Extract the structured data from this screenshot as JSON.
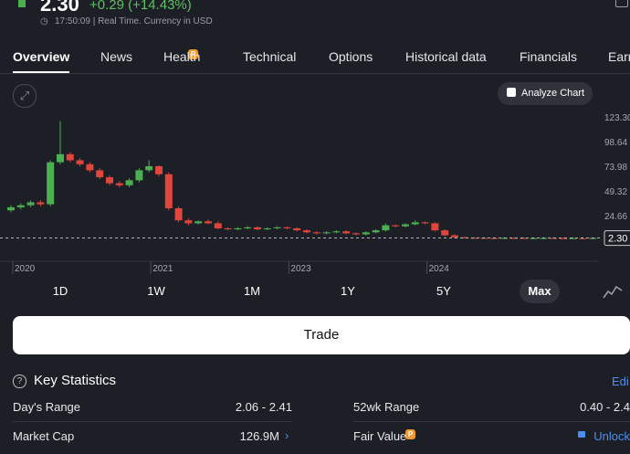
{
  "header": {
    "price": "2.30",
    "change": "+0.29 (+14.43%)",
    "status": "17:50:09 | Real Time. Currency in USD"
  },
  "tabs": [
    "Overview",
    "News",
    "Health",
    "Technical",
    "Options",
    "Historical data",
    "Financials",
    "Earn"
  ],
  "analyze_button": "Analyze Chart",
  "chart_data": {
    "type": "candlestick",
    "grid": false,
    "ylim": [
      -20,
      132.4
    ],
    "yticks": [
      {
        "value": 123.3,
        "label": "123.30"
      },
      98.64,
      73.98,
      49.32,
      24.66
    ],
    "xticks": [
      {
        "value": 0,
        "label": "2020"
      },
      {
        "value": 14,
        "label": "2021"
      },
      {
        "value": 28,
        "label": "2023"
      },
      {
        "value": 42,
        "label": "2024"
      }
    ],
    "last_price": {
      "value": 2.3,
      "label": "2.30"
    },
    "up_color": "#4cb050",
    "down_color": "#e0463b",
    "open": [
      30,
      33,
      35,
      38,
      36,
      78,
      86,
      80,
      76,
      70,
      63,
      57,
      55,
      60,
      70,
      74,
      66,
      32,
      20,
      17,
      19,
      17,
      12,
      11,
      12,
      13,
      11,
      12,
      13,
      12,
      10,
      8,
      7,
      8,
      9,
      7,
      6,
      8,
      10,
      15,
      14,
      16,
      18,
      17,
      10,
      5,
      3,
      2.5,
      2.4,
      2.3,
      2.2,
      2.4,
      2.3,
      2.1,
      2.2,
      2.3,
      2.1,
      2.0,
      2.1,
      2.0
    ],
    "high": [
      35,
      37,
      40,
      40,
      80,
      119,
      88,
      82,
      78,
      72,
      65,
      59,
      62,
      72,
      80,
      75,
      68,
      34,
      22,
      20,
      21,
      19,
      13,
      13,
      14,
      14,
      13,
      14,
      14,
      13,
      11,
      9,
      9,
      10,
      10,
      8,
      9,
      11,
      17,
      16,
      17,
      20,
      19,
      18,
      11,
      6,
      4,
      3,
      3,
      3,
      3,
      3,
      3,
      3,
      3,
      3,
      3,
      3,
      3,
      2.6
    ],
    "low": [
      28,
      31,
      33,
      34,
      34,
      76,
      78,
      74,
      68,
      61,
      55,
      53,
      53,
      58,
      68,
      64,
      30,
      18,
      15,
      16,
      16,
      11,
      10,
      10,
      11,
      10,
      10,
      11,
      11,
      9,
      7,
      6,
      6,
      7,
      6,
      5,
      5,
      7,
      9,
      13,
      13,
      15,
      16,
      9,
      4,
      2.5,
      2,
      2,
      2,
      1.9,
      1.9,
      2,
      1.8,
      1.8,
      2,
      1.9,
      1.8,
      1.8,
      1.8,
      1.9
    ],
    "close": [
      33,
      35,
      38,
      36,
      78,
      86,
      80,
      76,
      70,
      63,
      57,
      55,
      60,
      70,
      74,
      66,
      32,
      20,
      17,
      19,
      17,
      12,
      11,
      12,
      13,
      11,
      12,
      13,
      12,
      10,
      8,
      7,
      8,
      9,
      7,
      6,
      8,
      10,
      15,
      14,
      16,
      18,
      17,
      10,
      5,
      3,
      2.5,
      2.4,
      2.3,
      2.2,
      2.4,
      2.3,
      2.1,
      2.2,
      2.3,
      2.1,
      2.0,
      2.1,
      2.0,
      2.3
    ]
  },
  "ranges": [
    "1D",
    "1W",
    "1M",
    "1Y",
    "5Y",
    "Max"
  ],
  "trade_button": "Trade",
  "key_statistics": {
    "title": "Key Statistics",
    "edit": "Edi",
    "rows": [
      [
        {
          "label": "Day's Range",
          "value": "2.06 - 2.41"
        },
        {
          "label": "52wk Range",
          "value": "0.40 - 2.4"
        }
      ],
      [
        {
          "label": "Market Cap",
          "value": "126.9M"
        },
        {
          "label": "Fair Value",
          "value": "Unlock"
        }
      ]
    ]
  }
}
